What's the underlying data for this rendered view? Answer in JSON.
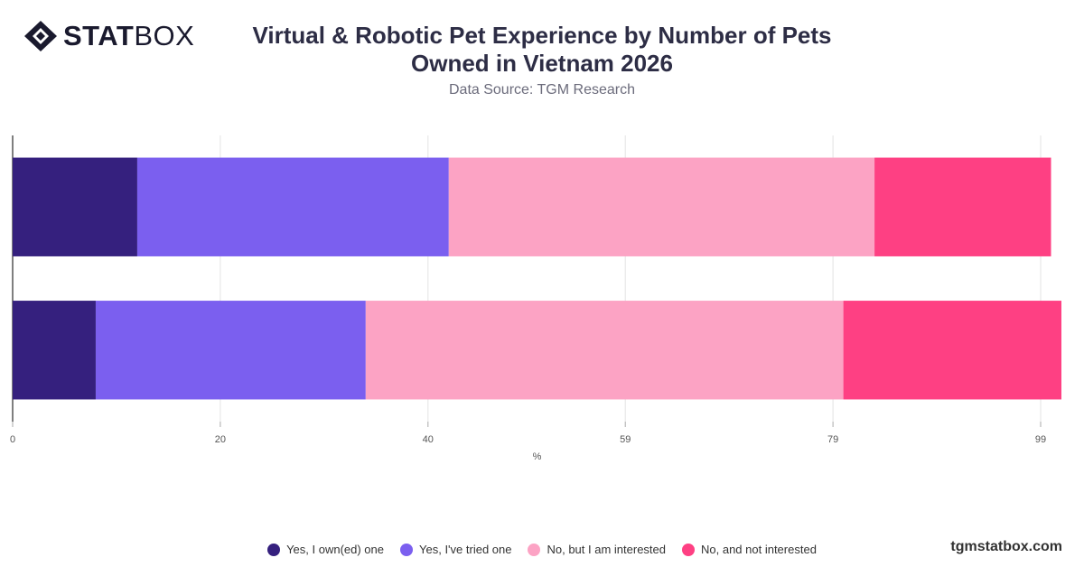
{
  "brand": {
    "logo_bold": "STAT",
    "logo_light": "BOX",
    "url": "tgmstatbox.com"
  },
  "chart_data": {
    "type": "bar",
    "orientation": "horizontal",
    "stacked": true,
    "title": "Virtual & Robotic Pet Experience by Number of Pets Owned in Vietnam 2026",
    "subtitle": "Data Source: TGM Research",
    "xlabel": "%",
    "ylabel": "",
    "xlim": [
      0,
      101
    ],
    "x_ticks": [
      0,
      20,
      40,
      59,
      79,
      99
    ],
    "grid": true,
    "legend_position": "bottom",
    "categories": [
      "",
      ""
    ],
    "series": [
      {
        "name": "Yes, I own(ed) one",
        "color": "#35207e",
        "values": [
          12,
          8
        ]
      },
      {
        "name": "Yes, I've tried one",
        "color": "#7b5fef",
        "values": [
          30,
          26
        ]
      },
      {
        "name": "No, but I am interested",
        "color": "#fca3c4",
        "values": [
          41,
          46
        ]
      },
      {
        "name": "No, and not interested",
        "color": "#fe4083",
        "values": [
          17,
          21
        ]
      }
    ]
  }
}
